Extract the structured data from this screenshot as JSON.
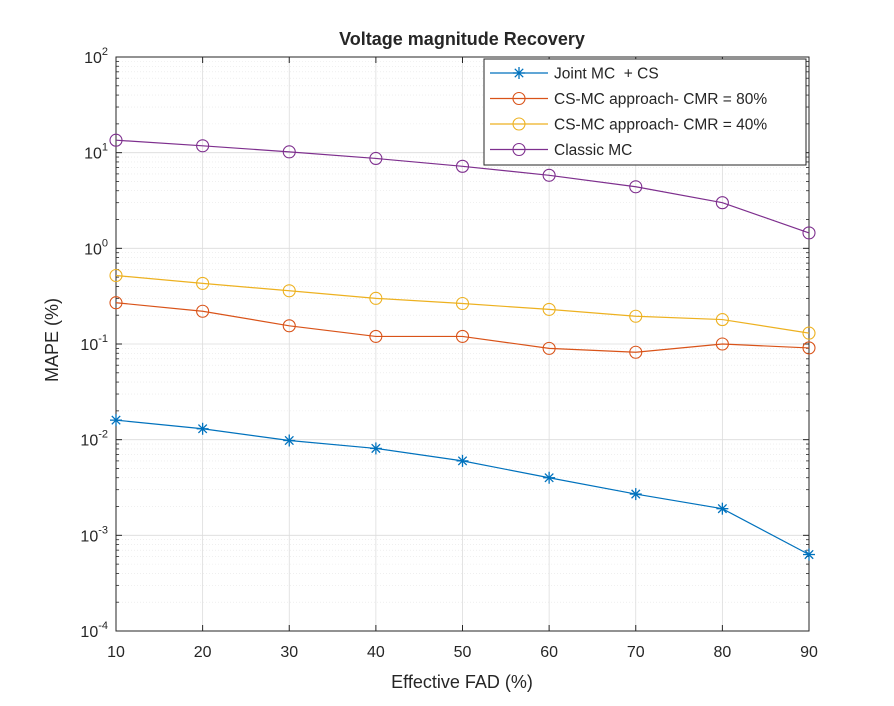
{
  "chart_data": {
    "type": "line",
    "title": "Voltage magnitude Recovery",
    "xlabel": "Effective FAD (%)",
    "ylabel": "MAPE (%)",
    "xlim": [
      10,
      90
    ],
    "ylim": [
      0.0001,
      100
    ],
    "yscale": "log",
    "grid": true,
    "minor_grid": true,
    "legend_position": "top-right",
    "x": [
      10,
      20,
      30,
      40,
      50,
      60,
      70,
      80,
      90
    ],
    "x_ticks": [
      "10",
      "20",
      "30",
      "40",
      "50",
      "60",
      "70",
      "80",
      "90"
    ],
    "y_ticks": [
      {
        "value": 100,
        "base": "10",
        "exp": "2"
      },
      {
        "value": 10,
        "base": "10",
        "exp": "1"
      },
      {
        "value": 1,
        "base": "10",
        "exp": "0"
      },
      {
        "value": 0.1,
        "base": "10",
        "exp": "-1"
      },
      {
        "value": 0.01,
        "base": "10",
        "exp": "-2"
      },
      {
        "value": 0.001,
        "base": "10",
        "exp": "-3"
      },
      {
        "value": 0.0001,
        "base": "10",
        "exp": "-4"
      }
    ],
    "series": [
      {
        "name": "Joint MC  + CS",
        "color": "#0072BD",
        "marker": "asterisk",
        "values": [
          0.016,
          0.013,
          0.0098,
          0.0081,
          0.006,
          0.004,
          0.0027,
          0.0019,
          0.00063
        ]
      },
      {
        "name": "CS-MC approach- CMR = 80%",
        "color": "#D95319",
        "marker": "circle",
        "values": [
          0.27,
          0.22,
          0.155,
          0.12,
          0.12,
          0.09,
          0.082,
          0.1,
          0.091
        ]
      },
      {
        "name": "CS-MC approach- CMR = 40%",
        "color": "#EDB120",
        "marker": "circle",
        "values": [
          0.52,
          0.43,
          0.36,
          0.3,
          0.265,
          0.23,
          0.195,
          0.18,
          0.13
        ]
      },
      {
        "name": "Classic MC",
        "color": "#7E2F8E",
        "marker": "circle",
        "values": [
          13.5,
          11.8,
          10.2,
          8.7,
          7.2,
          5.8,
          4.4,
          3.0,
          1.45
        ]
      }
    ]
  }
}
